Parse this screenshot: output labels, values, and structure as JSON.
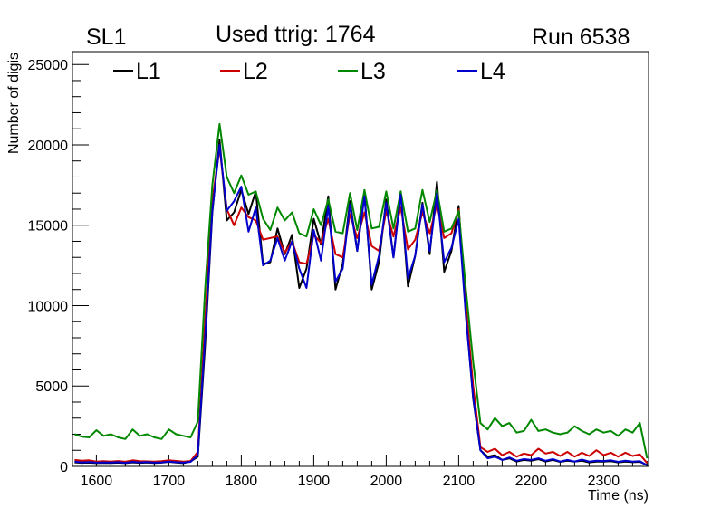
{
  "header": {
    "left_label": "SL1",
    "center_label": "Used ttrig: 1764",
    "right_label": "Run 6538"
  },
  "chart_data": {
    "type": "line",
    "xlabel": "Time (ns)",
    "ylabel": "Number of digis",
    "xlim": [
      1567,
      2362
    ],
    "ylim": [
      0,
      25800
    ],
    "xticks": [
      1600,
      1700,
      1800,
      1900,
      2000,
      2100,
      2200,
      2300
    ],
    "yticks": [
      0,
      5000,
      10000,
      15000,
      20000,
      25000
    ],
    "grid": false,
    "legend_position": "top",
    "x": [
      1570,
      1580,
      1590,
      1600,
      1610,
      1620,
      1630,
      1640,
      1650,
      1660,
      1670,
      1680,
      1690,
      1700,
      1710,
      1720,
      1730,
      1740,
      1750,
      1760,
      1770,
      1780,
      1790,
      1800,
      1810,
      1820,
      1830,
      1840,
      1850,
      1860,
      1870,
      1880,
      1890,
      1900,
      1910,
      1920,
      1930,
      1940,
      1950,
      1960,
      1970,
      1980,
      1990,
      2000,
      2010,
      2020,
      2030,
      2040,
      2050,
      2060,
      2070,
      2080,
      2090,
      2100,
      2110,
      2120,
      2130,
      2140,
      2150,
      2160,
      2170,
      2180,
      2190,
      2200,
      2210,
      2220,
      2230,
      2240,
      2250,
      2260,
      2270,
      2280,
      2290,
      2300,
      2310,
      2320,
      2330,
      2340,
      2350,
      2360
    ],
    "series": [
      {
        "name": "L1",
        "color": "#000000",
        "values": [
          250,
          220,
          230,
          200,
          220,
          210,
          230,
          200,
          250,
          220,
          240,
          210,
          230,
          280,
          240,
          200,
          300,
          600,
          7500,
          15800,
          20300,
          15300,
          15800,
          17200,
          15700,
          17100,
          12600,
          12700,
          14800,
          13200,
          14400,
          11100,
          12300,
          15400,
          13800,
          16800,
          11000,
          12600,
          16500,
          13400,
          17000,
          11000,
          12700,
          16600,
          13000,
          17100,
          11200,
          13100,
          16400,
          13200,
          17700,
          12100,
          13400,
          16200,
          9500,
          4200,
          1000,
          600,
          700,
          400,
          500,
          300,
          400,
          350,
          450,
          300,
          400,
          280,
          350,
          300,
          350,
          250,
          300,
          300,
          320,
          250,
          300,
          260,
          280,
          80
        ]
      },
      {
        "name": "L2",
        "color": "#cc0000",
        "values": [
          400,
          350,
          380,
          300,
          320,
          300,
          330,
          290,
          380,
          320,
          310,
          300,
          320,
          380,
          340,
          300,
          330,
          900,
          9000,
          16500,
          19800,
          16000,
          15000,
          16100,
          15500,
          15300,
          14100,
          14200,
          14300,
          13300,
          14000,
          12700,
          12600,
          14400,
          13900,
          15400,
          13200,
          13000,
          15700,
          14200,
          15800,
          13700,
          13400,
          15900,
          14300,
          16100,
          13500,
          14100,
          15800,
          14500,
          16300,
          14200,
          14500,
          16000,
          10000,
          5000,
          1200,
          900,
          1100,
          700,
          900,
          600,
          800,
          700,
          1100,
          800,
          900,
          650,
          900,
          600,
          850,
          650,
          1000,
          700,
          850,
          600,
          850,
          650,
          750,
          200
        ]
      },
      {
        "name": "L3",
        "color": "#008800",
        "values": [
          2000,
          1850,
          1800,
          2250,
          1900,
          2000,
          1800,
          1700,
          2300,
          1900,
          2000,
          1800,
          1700,
          2300,
          2000,
          1900,
          1800,
          2800,
          11000,
          17500,
          21300,
          18000,
          17000,
          18100,
          16900,
          17100,
          15400,
          14700,
          16100,
          15300,
          15800,
          14500,
          14300,
          16000,
          15000,
          16600,
          14600,
          14500,
          17000,
          14700,
          17200,
          14800,
          14900,
          17100,
          14800,
          17100,
          14600,
          14800,
          17200,
          15200,
          17200,
          14600,
          14800,
          15900,
          11000,
          6500,
          2700,
          2300,
          3000,
          2500,
          2700,
          2100,
          2200,
          2900,
          2200,
          2300,
          2100,
          2000,
          2100,
          2500,
          2200,
          2000,
          2300,
          2100,
          2200,
          1900,
          2300,
          2100,
          2700,
          500
        ]
      },
      {
        "name": "L4",
        "color": "#0000cc",
        "values": [
          300,
          250,
          270,
          230,
          250,
          240,
          260,
          220,
          280,
          250,
          270,
          230,
          250,
          300,
          260,
          230,
          280,
          700,
          8000,
          15900,
          20000,
          15900,
          16500,
          17400,
          14600,
          16100,
          12500,
          12800,
          14200,
          12800,
          14000,
          12300,
          11100,
          14700,
          12800,
          16200,
          11500,
          12300,
          16300,
          13400,
          16800,
          11300,
          13100,
          16400,
          13000,
          16900,
          11700,
          13100,
          16300,
          13400,
          17000,
          12700,
          13600,
          15400,
          9300,
          4300,
          1000,
          500,
          600,
          400,
          550,
          350,
          450,
          400,
          500,
          350,
          450,
          300,
          400,
          300,
          420,
          300,
          350,
          330,
          380,
          280,
          350,
          300,
          320,
          60
        ]
      }
    ]
  }
}
